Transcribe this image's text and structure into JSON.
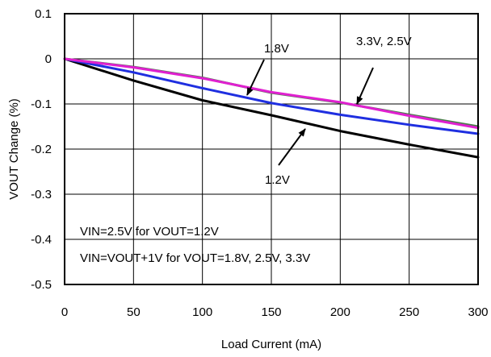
{
  "chart_data": {
    "type": "line",
    "xlabel": "Load Current (mA)",
    "ylabel": "VOUT Change (%)",
    "xlim": [
      0,
      300
    ],
    "ylim": [
      -0.5,
      0.1
    ],
    "xticks": [
      0,
      50,
      100,
      150,
      200,
      250,
      300
    ],
    "yticks": [
      0.1,
      0,
      -0.1,
      -0.2,
      -0.3,
      -0.4,
      -0.5
    ],
    "x_tick_labels": [
      "0",
      "50",
      "100",
      "150",
      "200",
      "250",
      "300"
    ],
    "y_tick_labels": [
      "0.1",
      "0",
      "-0.1",
      "-0.2",
      "-0.3",
      "-0.4",
      "-0.5"
    ],
    "grid": true,
    "series": [
      {
        "name": "1.2V",
        "color": "#000000",
        "x": [
          0,
          50,
          100,
          150,
          200,
          250,
          300
        ],
        "y": [
          0,
          -0.048,
          -0.092,
          -0.125,
          -0.16,
          -0.19,
          -0.218
        ]
      },
      {
        "name": "1.8V",
        "color": "#1f2fe0",
        "x": [
          0,
          50,
          100,
          150,
          200,
          250,
          300
        ],
        "y": [
          0,
          -0.03,
          -0.065,
          -0.098,
          -0.124,
          -0.146,
          -0.166
        ]
      },
      {
        "name": "2.5V",
        "color": "#4a7f4a",
        "x": [
          0,
          50,
          100,
          150,
          200,
          250,
          300
        ],
        "y": [
          0,
          -0.018,
          -0.042,
          -0.075,
          -0.097,
          -0.124,
          -0.15
        ]
      },
      {
        "name": "3.3V",
        "color": "#e020d0",
        "x": [
          0,
          50,
          100,
          150,
          200,
          250,
          300
        ],
        "y": [
          0,
          -0.019,
          -0.043,
          -0.074,
          -0.096,
          -0.126,
          -0.153
        ]
      }
    ],
    "annotations": {
      "label_18": "1.8V",
      "label_3325": "3.3V, 2.5V",
      "label_12": "1.2V",
      "note_line1": "VIN=2.5V for VOUT=1.2V",
      "note_line2": "VIN=VOUT+1V for VOUT=1.8V, 2.5V, 3.3V"
    }
  }
}
